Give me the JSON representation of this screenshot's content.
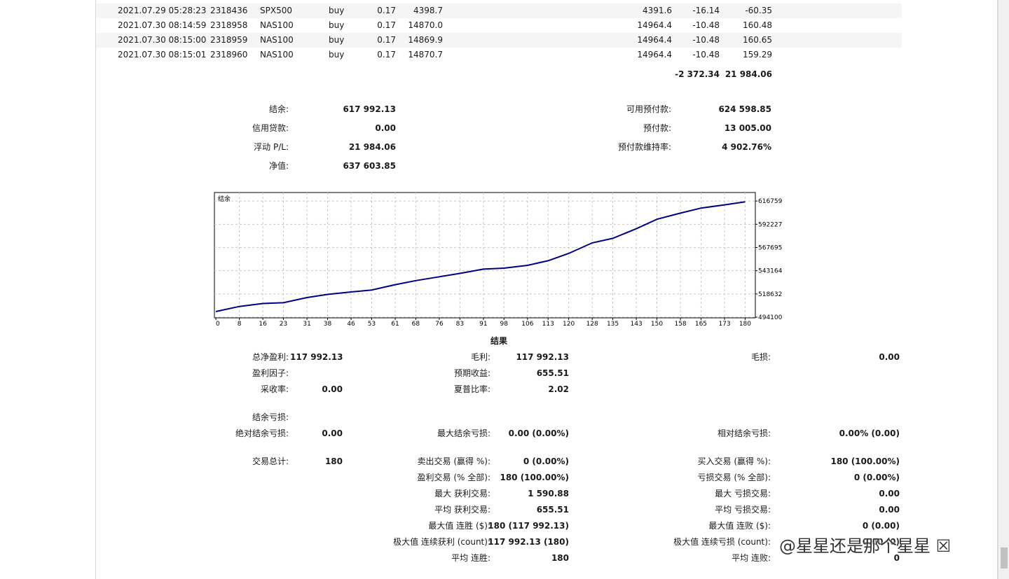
{
  "trades": [
    {
      "time": "2021.07.29 05:28:23",
      "ticket": "2318436",
      "symbol": "SPX500",
      "type": "buy",
      "volume": "0.17",
      "open_price": "4398.7",
      "close_price": "4391.6",
      "swap": "-16.14",
      "profit": "-60.35"
    },
    {
      "time": "2021.07.30 08:14:59",
      "ticket": "2318958",
      "symbol": "NAS100",
      "type": "buy",
      "volume": "0.17",
      "open_price": "14870.0",
      "close_price": "14964.4",
      "swap": "-10.48",
      "profit": "160.48"
    },
    {
      "time": "2021.07.30 08:15:00",
      "ticket": "2318959",
      "symbol": "NAS100",
      "type": "buy",
      "volume": "0.17",
      "open_price": "14869.9",
      "close_price": "14964.4",
      "swap": "-10.48",
      "profit": "160.65"
    },
    {
      "time": "2021.07.30 08:15:01",
      "ticket": "2318960",
      "symbol": "NAS100",
      "type": "buy",
      "volume": "0.17",
      "open_price": "14870.7",
      "close_price": "14964.4",
      "swap": "-10.48",
      "profit": "159.29"
    }
  ],
  "totals": {
    "swap": "-2 372.34",
    "profit": "21 984.06"
  },
  "account": {
    "balance_label": "结余:",
    "balance": "617 992.13",
    "credit_label": "信用贷款:",
    "credit": "0.00",
    "floating_label": "浮动 P/L:",
    "floating": "21 984.06",
    "equity_label": "净值:",
    "equity": "637 603.85",
    "free_margin_label": "可用预付款:",
    "free_margin": "624 598.85",
    "margin_label": "预付款:",
    "margin": "13 005.00",
    "margin_level_label": "预付款维持率:",
    "margin_level": "4 902.76%"
  },
  "chart_data": {
    "type": "line",
    "title": "结余",
    "x_ticks": [
      0,
      8,
      16,
      23,
      31,
      38,
      46,
      53,
      61,
      68,
      76,
      83,
      91,
      98,
      106,
      113,
      120,
      128,
      135,
      143,
      150,
      158,
      165,
      173,
      180
    ],
    "y_ticks": [
      494100,
      518632,
      543164,
      567695,
      592227,
      616759
    ],
    "xlim": [
      0,
      183
    ],
    "ylim": [
      494100,
      625000
    ],
    "grid": true,
    "series": [
      {
        "color": "#000080",
        "x": [
          0,
          8,
          16,
          23,
          31,
          38,
          46,
          53,
          61,
          68,
          76,
          83,
          91,
          98,
          106,
          113,
          120,
          128,
          135,
          143,
          150,
          158,
          165,
          173,
          180
        ],
        "y": [
          500000,
          505400,
          508500,
          509300,
          514800,
          518100,
          520700,
          522800,
          528400,
          532700,
          536800,
          540300,
          544800,
          545900,
          548800,
          553700,
          561400,
          572600,
          577400,
          587500,
          597500,
          604000,
          609300,
          612700,
          615900
        ]
      }
    ]
  },
  "results": {
    "title": "结果",
    "net_profit_label": "总净盈利:",
    "net_profit": "117 992.13",
    "gross_profit_label": "毛利:",
    "gross_profit": "117 992.13",
    "gross_loss_label": "毛损:",
    "gross_loss": "0.00",
    "profit_factor_label": "盈利因子:",
    "profit_factor": "",
    "expected_payoff_label": "预期收益:",
    "expected_payoff": "655.51",
    "recovery_label": "采收率:",
    "recovery": "0.00",
    "sharpe_label": "夏普比率:",
    "sharpe": "2.02",
    "drawdown_label": "结余亏损:",
    "abs_dd_label": "绝对结余亏损:",
    "abs_dd": "0.00",
    "max_dd_label": "最大结余亏损:",
    "max_dd": "0.00 (0.00%)",
    "rel_dd_label": "相对结余亏损:",
    "rel_dd": "0.00% (0.00)",
    "total_trades_label": "交易总计:",
    "total_trades": "180",
    "short_label": "卖出交易 (赢得 %):",
    "short": "0 (0.00%)",
    "long_label": "买入交易 (赢得 %):",
    "long": "180 (100.00%)",
    "profit_trades_label": "盈利交易 (% 全部):",
    "profit_trades": "180 (100.00%)",
    "loss_trades_label": "亏损交易 (% 全部):",
    "loss_trades": "0 (0.00%)",
    "largest_profit_label": "最大 获利交易:",
    "largest_profit": "1 590.88",
    "largest_loss_label": "最大 亏损交易:",
    "largest_loss": "0.00",
    "avg_profit_label": "平均 获利交易:",
    "avg_profit": "655.51",
    "avg_loss_label": "平均 亏损交易:",
    "avg_loss": "0.00",
    "max_wins_label": "最大值 连胜 ($):",
    "max_wins": "180 (117 992.13)",
    "max_losses_label": "最大值 连败 ($):",
    "max_losses": "0 (0.00)",
    "max_cons_profit_label": "极大值 连续获利 (count):",
    "max_cons_profit": "117 992.13 (180)",
    "max_cons_loss_label": "极大值 连续亏损 (count):",
    "max_cons_loss": "0.00 (0)",
    "avg_wins_label": "平均 连胜:",
    "avg_wins": "180",
    "avg_losses_label": "平均 连败:",
    "avg_losses": "0"
  },
  "watermark": "@星星还是那个星星 ☒"
}
